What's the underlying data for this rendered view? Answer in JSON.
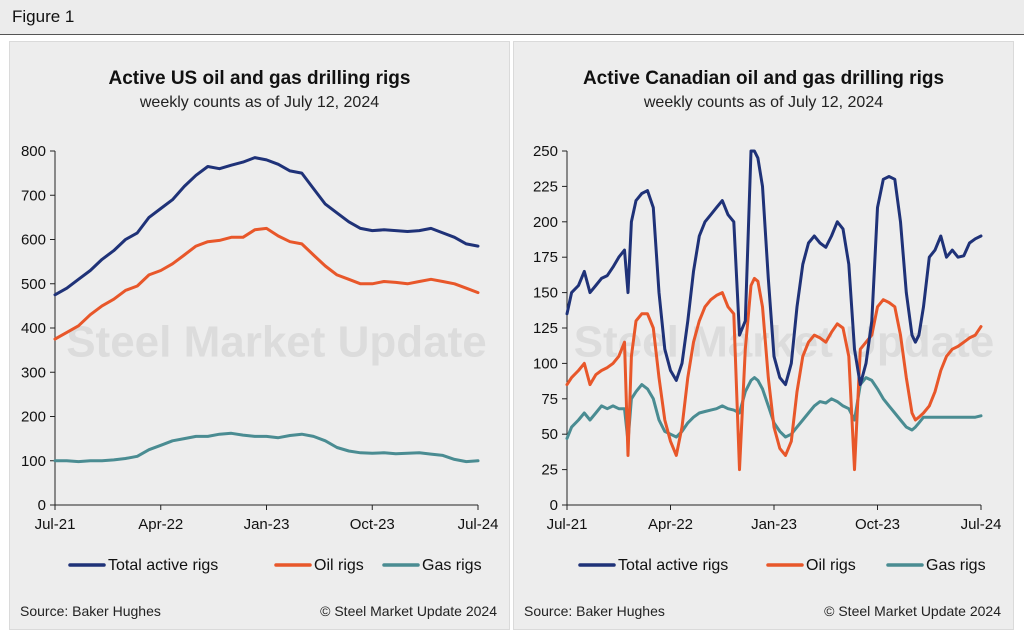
{
  "figure_label": "Figure 1",
  "colors": {
    "total": "#1f3278",
    "oil": "#e8572a",
    "gas": "#4a8c92"
  },
  "watermark": {
    "text": "Steel Market Update"
  },
  "charts": [
    {
      "id": "us",
      "title": "Active US oil and gas drilling rigs",
      "subtitle": "weekly counts as of July 12, 2024",
      "source": "Source: Baker Hughes",
      "copyright": "© Steel Market Update 2024",
      "legend_position": "bottom",
      "legend": [
        "Total active rigs",
        "Oil rigs",
        "Gas rigs"
      ]
    },
    {
      "id": "ca",
      "title": "Active Canadian oil and gas drilling rigs",
      "subtitle": "weekly counts as of July 12, 2024",
      "source": "Source: Baker Hughes",
      "copyright": "© Steel Market Update 2024",
      "legend_position": "bottom",
      "legend": [
        "Total active rigs",
        "Oil rigs",
        "Gas rigs"
      ]
    }
  ],
  "chart_data": [
    {
      "type": "line",
      "title": "Active US oil and gas drilling rigs",
      "subtitle": "weekly counts as of July 12, 2024",
      "x_unit": "months since Jul-21",
      "xlim": [
        0,
        36
      ],
      "ylim": [
        0,
        800
      ],
      "yticks": [
        0,
        100,
        200,
        300,
        400,
        500,
        600,
        700,
        800
      ],
      "xticks": [
        {
          "x": 0,
          "label": "Jul-21"
        },
        {
          "x": 9,
          "label": "Apr-22"
        },
        {
          "x": 18,
          "label": "Jan-23"
        },
        {
          "x": 27,
          "label": "Oct-23"
        },
        {
          "x": 36,
          "label": "Jul-24"
        }
      ],
      "grid": false,
      "series": [
        {
          "name": "Total active rigs",
          "color_key": "total",
          "x": [
            0,
            1,
            2,
            3,
            4,
            5,
            6,
            7,
            8,
            9,
            10,
            11,
            12,
            13,
            14,
            15,
            16,
            17,
            18,
            19,
            20,
            21,
            22,
            23,
            24,
            25,
            26,
            27,
            28,
            29,
            30,
            31,
            32,
            33,
            34,
            35,
            36
          ],
          "y": [
            475,
            490,
            510,
            530,
            555,
            575,
            600,
            615,
            650,
            670,
            690,
            720,
            745,
            765,
            760,
            768,
            775,
            785,
            780,
            770,
            755,
            750,
            715,
            680,
            660,
            640,
            625,
            620,
            622,
            620,
            618,
            620,
            625,
            615,
            605,
            590,
            585
          ]
        },
        {
          "name": "Oil rigs",
          "color_key": "oil",
          "x": [
            0,
            1,
            2,
            3,
            4,
            5,
            6,
            7,
            8,
            9,
            10,
            11,
            12,
            13,
            14,
            15,
            16,
            17,
            18,
            19,
            20,
            21,
            22,
            23,
            24,
            25,
            26,
            27,
            28,
            29,
            30,
            31,
            32,
            33,
            34,
            35,
            36
          ],
          "y": [
            375,
            390,
            405,
            430,
            450,
            465,
            485,
            495,
            520,
            530,
            545,
            565,
            585,
            595,
            598,
            605,
            605,
            622,
            625,
            608,
            595,
            590,
            565,
            540,
            520,
            510,
            500,
            500,
            505,
            503,
            500,
            505,
            510,
            505,
            500,
            490,
            480
          ]
        },
        {
          "name": "Gas rigs",
          "color_key": "gas",
          "x": [
            0,
            1,
            2,
            3,
            4,
            5,
            6,
            7,
            8,
            9,
            10,
            11,
            12,
            13,
            14,
            15,
            16,
            17,
            18,
            19,
            20,
            21,
            22,
            23,
            24,
            25,
            26,
            27,
            28,
            29,
            30,
            31,
            32,
            33,
            34,
            35,
            36
          ],
          "y": [
            100,
            100,
            98,
            100,
            100,
            102,
            105,
            110,
            125,
            135,
            145,
            150,
            155,
            155,
            160,
            162,
            158,
            155,
            155,
            152,
            157,
            160,
            155,
            145,
            130,
            122,
            118,
            117,
            118,
            116,
            117,
            118,
            115,
            112,
            103,
            98,
            100
          ]
        }
      ]
    },
    {
      "type": "line",
      "title": "Active Canadian oil and gas drilling rigs",
      "subtitle": "weekly counts as of July 12, 2024",
      "x_unit": "months since Jul-21",
      "xlim": [
        0,
        36
      ],
      "ylim": [
        0,
        250
      ],
      "yticks": [
        0,
        25,
        50,
        75,
        100,
        125,
        150,
        175,
        200,
        225,
        250
      ],
      "xticks": [
        {
          "x": 0,
          "label": "Jul-21"
        },
        {
          "x": 9,
          "label": "Apr-22"
        },
        {
          "x": 18,
          "label": "Jan-23"
        },
        {
          "x": 27,
          "label": "Oct-23"
        },
        {
          "x": 36,
          "label": "Jul-24"
        }
      ],
      "grid": false,
      "series": [
        {
          "name": "Total active rigs",
          "color_key": "total",
          "x": [
            0,
            0.4,
            1,
            1.5,
            2,
            2.5,
            3,
            3.5,
            4,
            4.5,
            5,
            5.3,
            5.6,
            6,
            6.5,
            7,
            7.5,
            8,
            8.5,
            9,
            9.5,
            10,
            10.5,
            11,
            11.5,
            12,
            12.5,
            13,
            13.5,
            14,
            14.5,
            15,
            15.5,
            16,
            16.3,
            16.6,
            17,
            17.5,
            18,
            18.5,
            19,
            19.5,
            20,
            20.5,
            21,
            21.5,
            22,
            22.5,
            23,
            23.5,
            24,
            24.5,
            25,
            25.5,
            26,
            26.5,
            27,
            27.5,
            28,
            28.5,
            29,
            29.5,
            30,
            30.3,
            30.6,
            31,
            31.5,
            32,
            32.5,
            33,
            33.5,
            34,
            34.5,
            35,
            35.5,
            36
          ],
          "y": [
            135,
            150,
            155,
            165,
            150,
            155,
            160,
            162,
            168,
            175,
            180,
            150,
            200,
            215,
            220,
            222,
            210,
            150,
            110,
            95,
            88,
            100,
            130,
            165,
            190,
            200,
            205,
            210,
            215,
            205,
            200,
            120,
            130,
            250,
            250,
            245,
            225,
            160,
            105,
            90,
            85,
            100,
            140,
            170,
            185,
            190,
            185,
            182,
            190,
            200,
            195,
            170,
            110,
            85,
            100,
            130,
            210,
            230,
            232,
            230,
            200,
            150,
            120,
            115,
            120,
            140,
            175,
            180,
            190,
            175,
            180,
            175,
            176,
            185,
            188,
            190
          ]
        },
        {
          "name": "Oil rigs",
          "color_key": "oil",
          "x": [
            0,
            0.4,
            1,
            1.5,
            2,
            2.5,
            3,
            3.5,
            4,
            4.5,
            5,
            5.3,
            5.6,
            6,
            6.5,
            7,
            7.5,
            8,
            8.5,
            9,
            9.5,
            10,
            10.5,
            11,
            11.5,
            12,
            12.5,
            13,
            13.5,
            14,
            14.5,
            15,
            15.5,
            16,
            16.3,
            16.6,
            17,
            17.5,
            18,
            18.5,
            19,
            19.5,
            20,
            20.5,
            21,
            21.5,
            22,
            22.5,
            23,
            23.5,
            24,
            24.5,
            25,
            25.5,
            26,
            26.5,
            27,
            27.5,
            28,
            28.5,
            29,
            29.5,
            30,
            30.3,
            30.6,
            31,
            31.5,
            32,
            32.5,
            33,
            33.5,
            34,
            34.5,
            35,
            35.5,
            36
          ],
          "y": [
            85,
            90,
            95,
            100,
            85,
            92,
            95,
            97,
            100,
            105,
            115,
            35,
            105,
            130,
            135,
            135,
            125,
            90,
            60,
            45,
            35,
            55,
            90,
            115,
            130,
            140,
            145,
            148,
            150,
            140,
            135,
            25,
            110,
            155,
            160,
            158,
            140,
            90,
            55,
            40,
            35,
            45,
            80,
            105,
            115,
            120,
            118,
            115,
            122,
            128,
            125,
            105,
            25,
            110,
            115,
            120,
            140,
            145,
            143,
            140,
            120,
            90,
            65,
            60,
            62,
            65,
            70,
            80,
            95,
            105,
            110,
            112,
            115,
            118,
            120,
            126
          ]
        },
        {
          "name": "Gas rigs",
          "color_key": "gas",
          "x": [
            0,
            0.4,
            1,
            1.5,
            2,
            2.5,
            3,
            3.5,
            4,
            4.5,
            5,
            5.3,
            5.6,
            6,
            6.5,
            7,
            7.5,
            8,
            8.5,
            9,
            9.5,
            10,
            10.5,
            11,
            11.5,
            12,
            12.5,
            13,
            13.5,
            14,
            14.5,
            15,
            15.5,
            16,
            16.3,
            16.6,
            17,
            17.5,
            18,
            18.5,
            19,
            19.5,
            20,
            20.5,
            21,
            21.5,
            22,
            22.5,
            23,
            23.5,
            24,
            24.5,
            25,
            25.5,
            26,
            26.5,
            27,
            27.5,
            28,
            28.5,
            29,
            29.5,
            30,
            30.3,
            30.6,
            31,
            31.5,
            32,
            32.5,
            33,
            33.5,
            34,
            34.5,
            35,
            35.5,
            36
          ],
          "y": [
            47,
            55,
            60,
            65,
            60,
            65,
            70,
            68,
            70,
            68,
            68,
            45,
            75,
            80,
            85,
            82,
            75,
            60,
            52,
            50,
            48,
            52,
            58,
            62,
            65,
            66,
            67,
            68,
            70,
            68,
            67,
            65,
            80,
            88,
            90,
            88,
            82,
            70,
            58,
            52,
            48,
            50,
            55,
            60,
            65,
            70,
            73,
            72,
            75,
            73,
            70,
            68,
            60,
            85,
            90,
            88,
            82,
            75,
            70,
            65,
            60,
            55,
            53,
            55,
            58,
            62,
            62,
            62,
            62,
            62,
            62,
            62,
            62,
            62,
            62,
            63
          ]
        }
      ]
    }
  ]
}
